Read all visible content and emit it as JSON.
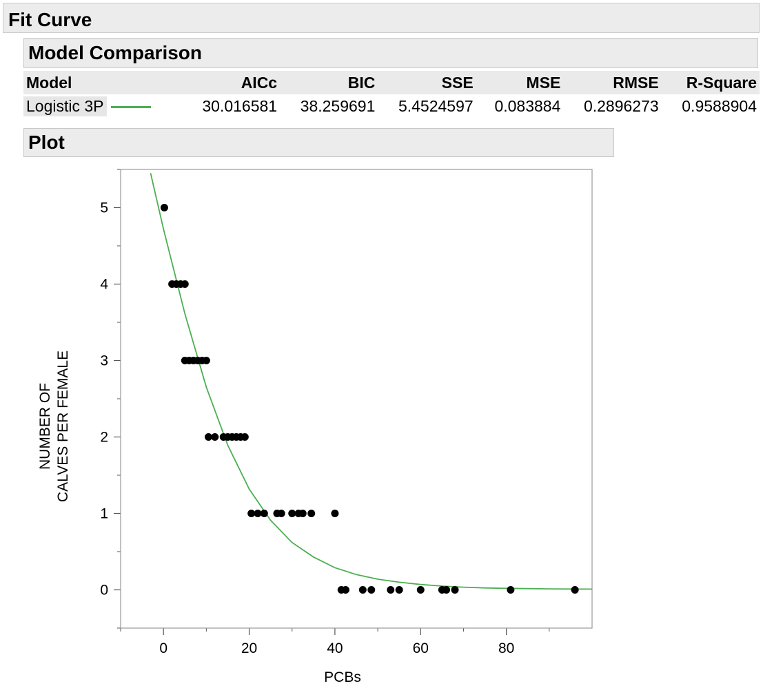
{
  "report": {
    "title": "Fit Curve",
    "model_comparison": {
      "title": "Model Comparison",
      "columns": [
        "Model",
        "AICc",
        "BIC",
        "SSE",
        "MSE",
        "RMSE",
        "R-Square"
      ],
      "rows": [
        {
          "model": "Logistic 3P",
          "AICc": "30.016581",
          "BIC": "38.259691",
          "SSE": "5.4524597",
          "MSE": "0.083884",
          "RMSE": "0.2896273",
          "R_Square": "0.9588904"
        }
      ]
    },
    "plot_title": "Plot"
  },
  "colors": {
    "fit_line": "#4caf50",
    "points": "#000000"
  },
  "chart_data": {
    "type": "scatter",
    "xlabel": "PCBs",
    "ylabel": [
      "NUMBER OF",
      "CALVES PER FEMALE"
    ],
    "xlim": [
      -10,
      100
    ],
    "ylim": [
      -0.5,
      5.5
    ],
    "x_ticks": [
      0,
      20,
      40,
      60,
      80
    ],
    "y_ticks": [
      0,
      1,
      2,
      3,
      4,
      5
    ],
    "grid": false,
    "points": [
      [
        0.2,
        5
      ],
      [
        2,
        4
      ],
      [
        3,
        4
      ],
      [
        4,
        4
      ],
      [
        5,
        4
      ],
      [
        5,
        3
      ],
      [
        6,
        3
      ],
      [
        7,
        3
      ],
      [
        8,
        3
      ],
      [
        9,
        3
      ],
      [
        10,
        3
      ],
      [
        10.5,
        2
      ],
      [
        12,
        2
      ],
      [
        14,
        2
      ],
      [
        15,
        2
      ],
      [
        16,
        2
      ],
      [
        17,
        2
      ],
      [
        18,
        2
      ],
      [
        19,
        2
      ],
      [
        20.5,
        1
      ],
      [
        22,
        1
      ],
      [
        23.5,
        1
      ],
      [
        26.5,
        1
      ],
      [
        27.5,
        1
      ],
      [
        30,
        1
      ],
      [
        31.5,
        1
      ],
      [
        32.5,
        1
      ],
      [
        34.5,
        1
      ],
      [
        40,
        1
      ],
      [
        41.5,
        0
      ],
      [
        42.5,
        0
      ],
      [
        46.5,
        0
      ],
      [
        48.5,
        0
      ],
      [
        53,
        0
      ],
      [
        55,
        0
      ],
      [
        60,
        0
      ],
      [
        65,
        0
      ],
      [
        66,
        0
      ],
      [
        68,
        0
      ],
      [
        81,
        0
      ],
      [
        96,
        0
      ]
    ],
    "fit": {
      "name": "Logistic 3P",
      "x": [
        -3,
        0,
        5,
        10,
        15,
        20,
        25,
        30,
        35,
        40,
        45,
        50,
        55,
        60,
        65,
        70,
        75,
        80,
        85,
        90,
        95,
        100
      ],
      "y": [
        5.45,
        4.72,
        3.61,
        2.65,
        1.89,
        1.32,
        0.91,
        0.62,
        0.43,
        0.29,
        0.2,
        0.14,
        0.1,
        0.07,
        0.05,
        0.035,
        0.025,
        0.02,
        0.016,
        0.013,
        0.011,
        0.01
      ]
    }
  }
}
